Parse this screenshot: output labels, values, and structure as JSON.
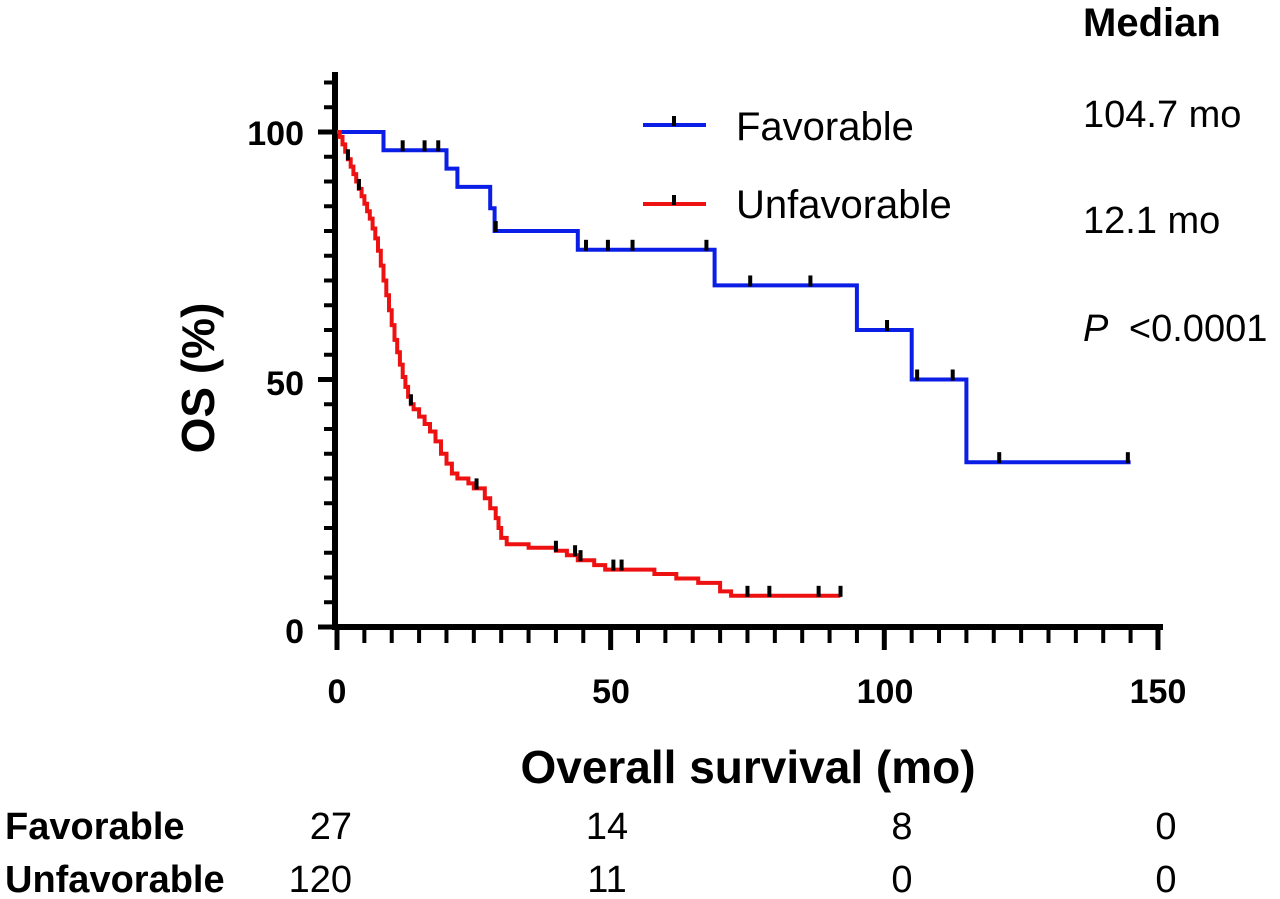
{
  "chart_data": {
    "type": "line",
    "subtype": "kaplan-meier step curve with censor marks",
    "xlabel": "Overall survival (mo)",
    "ylabel": "OS (%)",
    "xlim": [
      0,
      150
    ],
    "ylim": [
      0,
      110
    ],
    "x_ticks": [
      0,
      50,
      100,
      150
    ],
    "y_ticks": [
      0,
      50,
      100
    ],
    "x_minor_step": 5,
    "y_minor_step": 5,
    "grid": false,
    "legend_position": "top-center",
    "series": [
      {
        "name": "Favorable",
        "color": "#0a1ee6",
        "steps": [
          [
            0,
            100
          ],
          [
            8.5,
            96.3
          ],
          [
            20,
            92.6
          ],
          [
            22,
            88.9
          ],
          [
            28,
            84.6
          ],
          [
            28.8,
            80
          ],
          [
            44,
            76.2
          ],
          [
            69,
            69
          ],
          [
            95,
            60
          ],
          [
            105,
            50
          ],
          [
            115,
            33.3
          ],
          [
            145,
            33.3
          ]
        ],
        "censor_x": [
          12,
          16,
          18.5,
          29,
          45.5,
          49.5,
          54,
          67.5,
          75.5,
          86.5,
          100.5,
          106,
          112.5,
          121,
          144.5
        ]
      },
      {
        "name": "Unfavorable",
        "color": "#ee1111",
        "steps": [
          [
            0,
            100
          ],
          [
            0.5,
            99
          ],
          [
            1,
            97.5
          ],
          [
            1.5,
            96
          ],
          [
            2,
            94.5
          ],
          [
            2.5,
            93
          ],
          [
            3,
            91.5
          ],
          [
            3.5,
            90
          ],
          [
            4,
            88.5
          ],
          [
            4.5,
            87
          ],
          [
            5,
            85.5
          ],
          [
            5.5,
            84
          ],
          [
            6,
            82.5
          ],
          [
            6.5,
            80.5
          ],
          [
            7,
            78.5
          ],
          [
            7.5,
            76
          ],
          [
            8,
            73
          ],
          [
            8.5,
            70
          ],
          [
            9,
            67
          ],
          [
            9.5,
            64
          ],
          [
            10,
            61
          ],
          [
            10.5,
            58
          ],
          [
            11,
            55.5
          ],
          [
            11.5,
            53
          ],
          [
            12,
            50.5
          ],
          [
            12.5,
            48.5
          ],
          [
            13,
            46.5
          ],
          [
            13.5,
            45
          ],
          [
            14,
            44
          ],
          [
            15,
            42.5
          ],
          [
            16,
            41
          ],
          [
            17,
            39.5
          ],
          [
            18,
            37.5
          ],
          [
            19,
            35
          ],
          [
            20,
            33
          ],
          [
            21,
            31
          ],
          [
            22,
            30
          ],
          [
            24,
            29
          ],
          [
            25,
            28
          ],
          [
            27,
            26
          ],
          [
            28,
            24
          ],
          [
            29,
            22
          ],
          [
            29.5,
            20
          ],
          [
            30,
            18
          ],
          [
            31,
            16.7
          ],
          [
            35,
            16
          ],
          [
            40,
            15.4
          ],
          [
            42,
            14.5
          ],
          [
            44,
            13.5
          ],
          [
            47,
            12.5
          ],
          [
            49,
            11.6
          ],
          [
            58,
            10.7
          ],
          [
            62,
            9.8
          ],
          [
            66,
            8.9
          ],
          [
            70,
            7.2
          ],
          [
            72,
            6.3
          ],
          [
            92,
            6.3
          ]
        ],
        "censor_x": [
          2,
          4,
          13.5,
          25.5,
          40,
          43.5,
          44.5,
          50.5,
          52,
          75,
          79,
          88,
          92
        ]
      }
    ],
    "median_header": "Median",
    "median_values": [
      "104.7 mo",
      "12.1 mo"
    ],
    "p_value": {
      "symbol": "P",
      "text": "<0.0001"
    },
    "risk_table": {
      "rows": [
        {
          "name": "Favorable",
          "values": [
            "27",
            "14",
            "8",
            "0"
          ]
        },
        {
          "name": "Unfavorable",
          "values": [
            "120",
            "11",
            "0",
            "0"
          ]
        }
      ]
    }
  }
}
